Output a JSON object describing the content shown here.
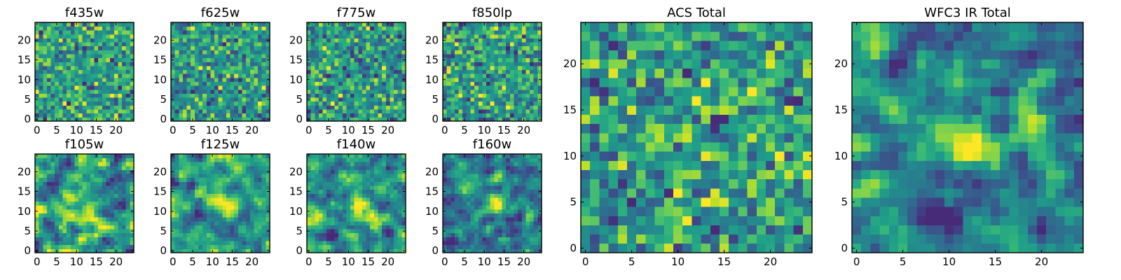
{
  "chart_data": [
    {
      "type": "heatmap",
      "title": "f435w",
      "x_ticks": [
        "0",
        "5",
        "10",
        "15",
        "20"
      ],
      "y_ticks": [
        "0",
        "5",
        "10",
        "15",
        "20"
      ],
      "xlim": [
        0,
        25
      ],
      "ylim": [
        0,
        25
      ],
      "grid": false
    },
    {
      "type": "heatmap",
      "title": "f625w",
      "x_ticks": [
        "0",
        "5",
        "10",
        "15",
        "20"
      ],
      "y_ticks": [
        "0",
        "5",
        "10",
        "15",
        "20"
      ],
      "xlim": [
        0,
        25
      ],
      "ylim": [
        0,
        25
      ],
      "grid": false
    },
    {
      "type": "heatmap",
      "title": "f775w",
      "x_ticks": [
        "0",
        "5",
        "10",
        "15",
        "20"
      ],
      "y_ticks": [
        "0",
        "5",
        "10",
        "15",
        "20"
      ],
      "xlim": [
        0,
        25
      ],
      "ylim": [
        0,
        25
      ],
      "grid": false
    },
    {
      "type": "heatmap",
      "title": "f850lp",
      "x_ticks": [
        "0",
        "5",
        "10",
        "15",
        "20"
      ],
      "y_ticks": [
        "0",
        "5",
        "10",
        "15",
        "20"
      ],
      "xlim": [
        0,
        25
      ],
      "ylim": [
        0,
        25
      ],
      "grid": false
    },
    {
      "type": "heatmap",
      "title": "f105w",
      "x_ticks": [
        "0",
        "5",
        "10",
        "15",
        "20"
      ],
      "y_ticks": [
        "0",
        "5",
        "10",
        "15",
        "20"
      ],
      "xlim": [
        0,
        25
      ],
      "ylim": [
        0,
        25
      ],
      "grid": false
    },
    {
      "type": "heatmap",
      "title": "f125w",
      "x_ticks": [
        "0",
        "5",
        "10",
        "15",
        "20"
      ],
      "y_ticks": [
        "0",
        "5",
        "10",
        "15",
        "20"
      ],
      "xlim": [
        0,
        25
      ],
      "ylim": [
        0,
        25
      ],
      "grid": false
    },
    {
      "type": "heatmap",
      "title": "f140w",
      "x_ticks": [
        "0",
        "5",
        "10",
        "15",
        "20"
      ],
      "y_ticks": [
        "0",
        "5",
        "10",
        "15",
        "20"
      ],
      "xlim": [
        0,
        25
      ],
      "ylim": [
        0,
        25
      ],
      "grid": false
    },
    {
      "type": "heatmap",
      "title": "f160w",
      "x_ticks": [
        "0",
        "5",
        "10",
        "15",
        "20"
      ],
      "y_ticks": [
        "0",
        "5",
        "10",
        "15",
        "20"
      ],
      "xlim": [
        0,
        25
      ],
      "ylim": [
        0,
        25
      ],
      "grid": false
    },
    {
      "type": "heatmap",
      "title": "ACS Total",
      "x_ticks": [
        "0",
        "5",
        "10",
        "15",
        "20"
      ],
      "y_ticks": [
        "0",
        "5",
        "10",
        "15",
        "20"
      ],
      "xlim": [
        0,
        25
      ],
      "ylim": [
        0,
        25
      ],
      "grid": false
    },
    {
      "type": "heatmap",
      "title": "WFC3 IR Total",
      "x_ticks": [
        "0",
        "5",
        "10",
        "15",
        "20"
      ],
      "y_ticks": [
        "0",
        "5",
        "10",
        "15",
        "20"
      ],
      "xlim": [
        0,
        25
      ],
      "ylim": [
        0,
        25
      ],
      "grid": false
    }
  ],
  "colormap": "viridis",
  "colors": {
    "dark": "#440154",
    "blue": "#31688e",
    "teal": "#21918c",
    "green": "#35b779",
    "yellow": "#fde725"
  }
}
